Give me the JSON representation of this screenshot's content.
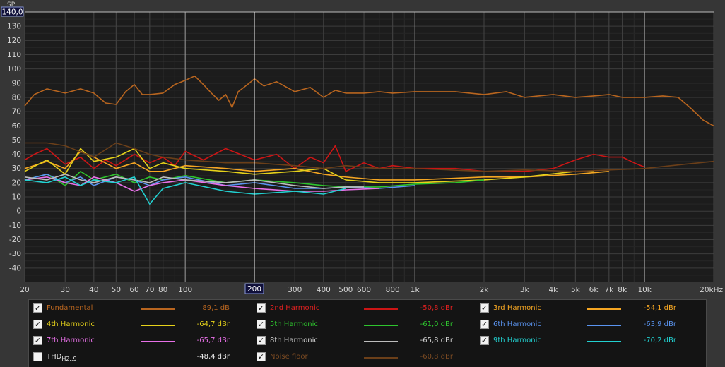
{
  "chart_data": {
    "type": "line",
    "y_axis_unit": "SPL",
    "y_axis_max_label": "140,0",
    "x_cursor_label": "200",
    "x_ticks": [
      "20",
      "30",
      "40",
      "50",
      "60",
      "70",
      "80",
      "100",
      "200",
      "300",
      "400",
      "500",
      "600",
      "800",
      "1k",
      "2k",
      "3k",
      "4k",
      "5k",
      "6k",
      "7k",
      "8k",
      "10k",
      "20kHz"
    ],
    "x_tick_values": [
      20,
      30,
      40,
      50,
      60,
      70,
      80,
      100,
      200,
      300,
      400,
      500,
      600,
      800,
      1000,
      2000,
      3000,
      4000,
      5000,
      6000,
      7000,
      8000,
      10000,
      20000
    ],
    "y_ticks": [
      "130",
      "120",
      "110",
      "100",
      "90",
      "80",
      "70",
      "60",
      "50",
      "40",
      "30",
      "20",
      "10",
      "0",
      "-10",
      "-20",
      "-30",
      "-40"
    ],
    "y_tick_values": [
      130,
      120,
      110,
      100,
      90,
      80,
      70,
      60,
      50,
      40,
      30,
      20,
      10,
      0,
      -10,
      -20,
      -30,
      -40
    ],
    "xlim": [
      20,
      20000
    ],
    "ylim": [
      -50,
      140
    ],
    "x_scale": "log",
    "grid": true,
    "series": [
      {
        "name": "Fundamental",
        "color": "#b8651f",
        "x": [
          20,
          22,
          25,
          30,
          35,
          40,
          45,
          50,
          55,
          60,
          65,
          70,
          80,
          90,
          100,
          110,
          120,
          130,
          140,
          150,
          160,
          170,
          180,
          190,
          200,
          220,
          250,
          300,
          350,
          400,
          450,
          500,
          600,
          700,
          800,
          1000,
          1500,
          2000,
          2500,
          3000,
          4000,
          5000,
          6000,
          7000,
          8000,
          10000,
          12000,
          14000,
          16000,
          18000,
          20000
        ],
        "y": [
          74,
          82,
          86,
          83,
          86,
          83,
          76,
          75,
          84,
          89,
          82,
          82,
          83,
          89,
          92,
          95,
          89,
          83,
          78,
          82,
          73,
          84,
          87,
          90,
          93,
          88,
          91,
          84,
          87,
          80,
          85,
          83,
          83,
          84,
          83,
          84,
          84,
          82,
          84,
          80,
          82,
          80,
          81,
          82,
          80,
          80,
          81,
          80,
          72,
          64,
          60
        ]
      },
      {
        "name": "2nd Harmonic",
        "color": "#cc1515",
        "x": [
          20,
          22,
          25,
          30,
          35,
          40,
          45,
          50,
          60,
          70,
          80,
          90,
          100,
          120,
          150,
          200,
          250,
          300,
          350,
          400,
          450,
          500,
          600,
          700,
          800,
          1000,
          1500,
          2000,
          3000,
          4000,
          5000,
          6000,
          7000,
          8000,
          9000,
          10000
        ],
        "y": [
          36,
          40,
          44,
          33,
          38,
          30,
          36,
          32,
          40,
          34,
          38,
          32,
          42,
          36,
          44,
          36,
          40,
          30,
          38,
          34,
          46,
          28,
          34,
          30,
          32,
          30,
          30,
          28,
          28,
          30,
          36,
          40,
          38,
          38,
          34,
          31
        ]
      },
      {
        "name": "3rd Harmonic",
        "color": "#f5a623",
        "x": [
          20,
          25,
          30,
          35,
          40,
          50,
          60,
          70,
          80,
          100,
          150,
          200,
          300,
          400,
          500,
          700,
          1000,
          2000,
          3000,
          5000,
          7000
        ],
        "y": [
          30,
          35,
          30,
          42,
          38,
          30,
          34,
          28,
          28,
          32,
          30,
          28,
          30,
          26,
          24,
          22,
          22,
          24,
          24,
          26,
          28
        ]
      },
      {
        "name": "4th Harmonic",
        "color": "#e6d21a",
        "x": [
          20,
          25,
          30,
          35,
          40,
          50,
          60,
          70,
          80,
          100,
          150,
          200,
          300,
          400,
          500,
          700,
          1000,
          2000,
          3000,
          5000,
          6000
        ],
        "y": [
          28,
          36,
          26,
          44,
          35,
          38,
          44,
          30,
          34,
          30,
          28,
          26,
          28,
          30,
          22,
          20,
          20,
          22,
          24,
          28,
          28
        ]
      },
      {
        "name": "5th Harmonic",
        "color": "#2ec42e",
        "x": [
          20,
          25,
          30,
          35,
          40,
          50,
          60,
          70,
          80,
          100,
          150,
          200,
          300,
          400,
          500,
          700,
          1000,
          1500,
          2000
        ],
        "y": [
          22,
          26,
          18,
          28,
          22,
          26,
          20,
          24,
          22,
          25,
          20,
          22,
          20,
          18,
          17,
          17,
          19,
          20,
          22
        ]
      },
      {
        "name": "6th Harmonic",
        "color": "#5a94f0",
        "x": [
          20,
          25,
          30,
          35,
          40,
          50,
          60,
          70,
          80,
          100,
          150,
          200,
          300,
          400,
          500,
          700,
          1000
        ],
        "y": [
          22,
          26,
          20,
          24,
          18,
          24,
          22,
          18,
          22,
          24,
          18,
          20,
          16,
          16,
          17,
          16,
          18
        ]
      },
      {
        "name": "7th Harmonic",
        "color": "#e870e8",
        "x": [
          20,
          25,
          30,
          35,
          40,
          50,
          60,
          70,
          80,
          100,
          150,
          200,
          300,
          400,
          500,
          700
        ],
        "y": [
          22,
          24,
          20,
          18,
          24,
          20,
          14,
          18,
          20,
          22,
          18,
          16,
          14,
          14,
          15,
          16
        ]
      },
      {
        "name": "8th Harmonic",
        "color": "#bdbdbd",
        "x": [
          20,
          25,
          30,
          35,
          40,
          50,
          60,
          70,
          80,
          100,
          150,
          200,
          300,
          400,
          500,
          600
        ],
        "y": [
          24,
          22,
          26,
          22,
          20,
          24,
          22,
          20,
          24,
          22,
          20,
          22,
          18,
          16,
          17,
          17
        ]
      },
      {
        "name": "9th Harmonic",
        "color": "#22d1d1",
        "x": [
          20,
          25,
          30,
          35,
          40,
          50,
          60,
          70,
          80,
          100,
          150,
          200,
          300,
          400,
          500
        ],
        "y": [
          22,
          20,
          24,
          18,
          22,
          20,
          24,
          5,
          16,
          20,
          14,
          12,
          14,
          12,
          16
        ]
      },
      {
        "name": "Noise floor",
        "color": "#6b3f19",
        "x": [
          20,
          25,
          30,
          40,
          50,
          60,
          70,
          80,
          100,
          150,
          200,
          300,
          400,
          500,
          700,
          1000,
          2000,
          3000,
          5000,
          7000,
          10000,
          15000,
          20000
        ],
        "y": [
          48,
          48,
          46,
          38,
          48,
          44,
          40,
          38,
          36,
          34,
          34,
          32,
          30,
          32,
          30,
          30,
          28,
          29,
          28,
          29,
          30,
          33,
          35
        ]
      }
    ]
  },
  "legend": {
    "items": [
      {
        "label": "Fundamental",
        "value": "89,1 dB",
        "color": "#b8651f",
        "checked": true,
        "col": 0,
        "row": 0
      },
      {
        "label": "2nd Harmonic",
        "value": "-50,8 dBr",
        "color": "#cc1515",
        "checked": true,
        "col": 1,
        "row": 0
      },
      {
        "label": "3rd Harmonic",
        "value": "-54,1 dBr",
        "color": "#f5a623",
        "checked": true,
        "col": 2,
        "row": 0
      },
      {
        "label": "4th Harmonic",
        "value": "-64,7 dBr",
        "color": "#e6d21a",
        "checked": true,
        "col": 0,
        "row": 1
      },
      {
        "label": "5th Harmonic",
        "value": "-61,0 dBr",
        "color": "#2ec42e",
        "checked": true,
        "col": 1,
        "row": 1
      },
      {
        "label": "6th Harmonic",
        "value": "-63,9 dBr",
        "color": "#5a94f0",
        "checked": true,
        "col": 2,
        "row": 1
      },
      {
        "label": "7th Harmonic",
        "value": "-65,7 dBr",
        "color": "#e870e8",
        "checked": true,
        "col": 0,
        "row": 2
      },
      {
        "label": "8th Harmonic",
        "value": "-65,8 dBr",
        "color": "#bdbdbd",
        "checked": true,
        "col": 1,
        "row": 2
      },
      {
        "label": "9th Harmonic",
        "value": "-70,2 dBr",
        "color": "#22d1d1",
        "checked": true,
        "col": 2,
        "row": 2
      },
      {
        "label": "THD",
        "label_sub": "H2..9",
        "value": "-48,4 dBr",
        "color": "#e8e8e8",
        "checked": false,
        "col": 0,
        "row": 3
      },
      {
        "label": "Noise floor",
        "value": "-60,8 dBr",
        "color": "#6b3f19",
        "checked": true,
        "col": 1,
        "row": 3
      }
    ],
    "check_glyph": "✓",
    "label_colors": {
      "Fundamental": "#b8651f",
      "2nd Harmonic": "#e02020",
      "3rd Harmonic": "#f5a623",
      "4th Harmonic": "#e6d21a",
      "5th Harmonic": "#2ec42e",
      "6th Harmonic": "#5a94f0",
      "7th Harmonic": "#e870e8",
      "8th Harmonic": "#d0d0d0",
      "9th Harmonic": "#22d1d1",
      "THD": "#e8e8e8",
      "Noise floor": "#7a4a22"
    }
  }
}
